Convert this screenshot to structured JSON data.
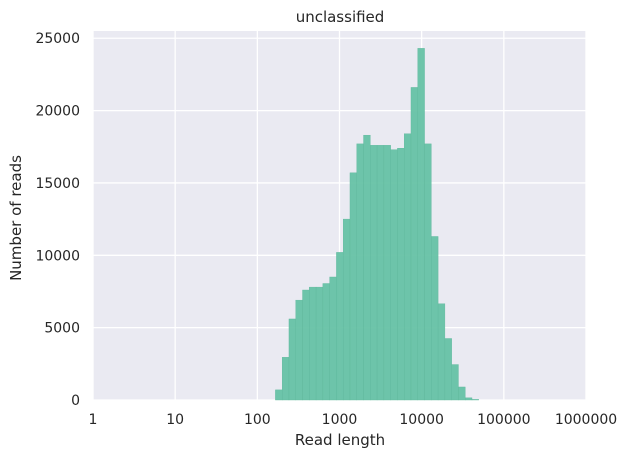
{
  "chart_data": {
    "type": "bar",
    "title": "unclassified",
    "xlabel": "Read length",
    "ylabel": "Number of reads",
    "xscale": "log",
    "xlim": [
      1,
      1000000
    ],
    "ylim": [
      0,
      25500
    ],
    "grid": true,
    "xticks": [
      1,
      10,
      100,
      1000,
      10000,
      100000,
      1000000
    ],
    "xtick_labels": [
      "1",
      "10",
      "100",
      "1000",
      "10000",
      "100000",
      "1000000"
    ],
    "yticks": [
      0,
      5000,
      10000,
      15000,
      20000,
      25000
    ],
    "ytick_labels": [
      "0",
      "5000",
      "10000",
      "15000",
      "20000",
      "25000"
    ],
    "bin_log10_start": 2.22,
    "bin_log10_width": 0.0825,
    "values": [
      700,
      2950,
      5600,
      6900,
      7600,
      7800,
      7800,
      8050,
      8500,
      10200,
      12500,
      15700,
      17700,
      18300,
      17600,
      17600,
      17600,
      17300,
      17400,
      18400,
      21600,
      24300,
      17700,
      11300,
      6650,
      4250,
      2450,
      900,
      150,
      40
    ],
    "colors": {
      "bar": "#66c2a5",
      "plot_background": "#eaeaf2",
      "grid": "#ffffff"
    }
  }
}
